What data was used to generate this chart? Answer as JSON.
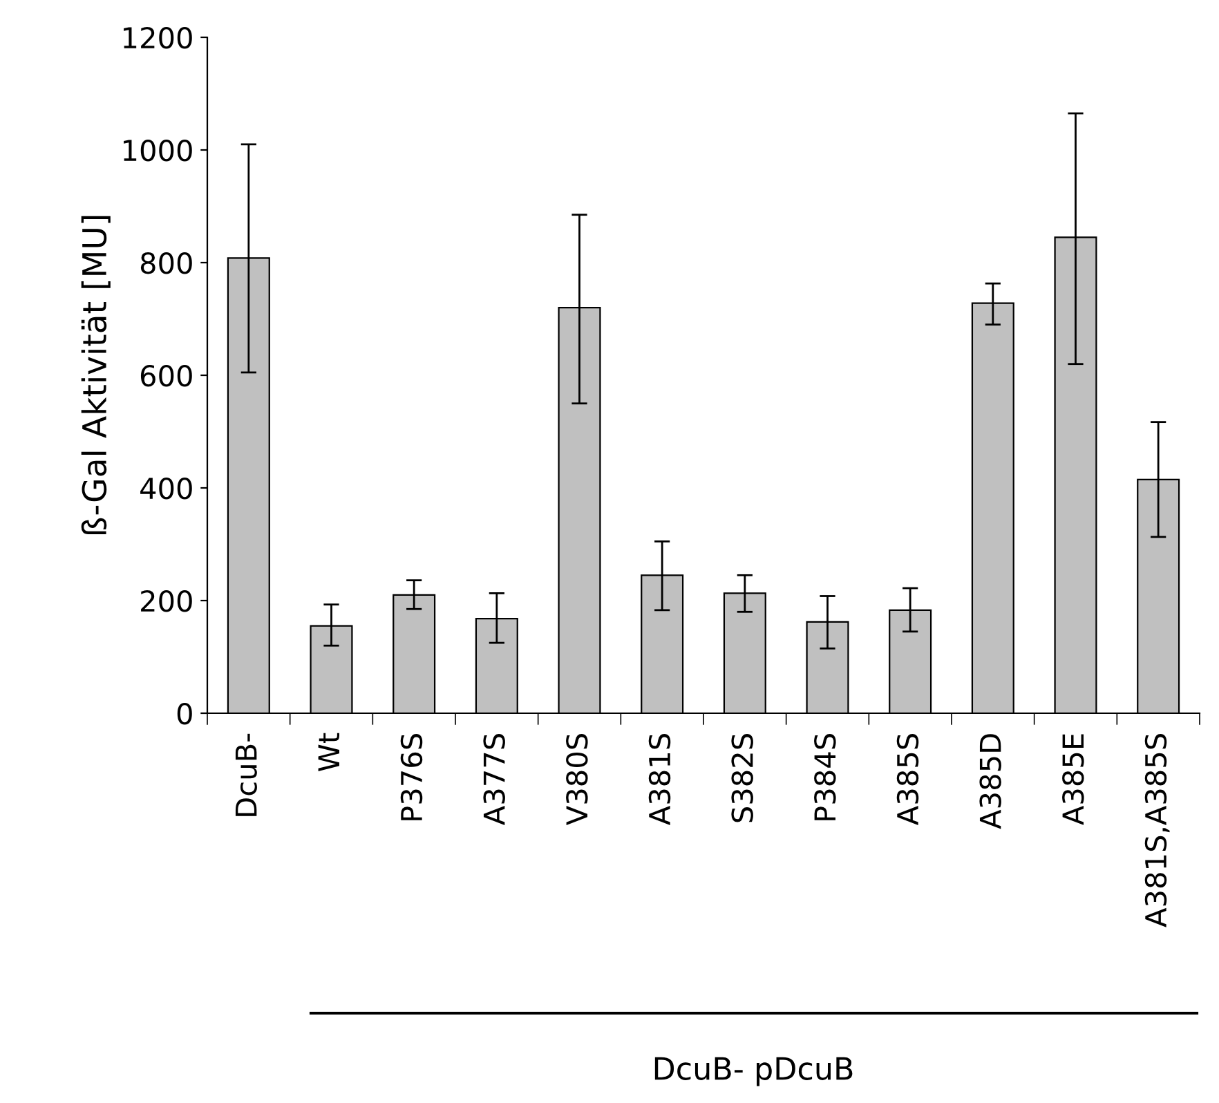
{
  "chart_data": {
    "type": "bar",
    "ylabel": "ß-Gal Aktivität [MU]",
    "categories": [
      "DcuB-",
      "Wt",
      "P376S",
      "A377S",
      "V380S",
      "A381S",
      "S382S",
      "P384S",
      "A385S",
      "A385D",
      "A385E",
      "A381S,A385S"
    ],
    "values": [
      808,
      155,
      210,
      168,
      720,
      245,
      213,
      162,
      183,
      728,
      845,
      415
    ],
    "errors": [
      [
        605,
        1010
      ],
      [
        120,
        193
      ],
      [
        185,
        236
      ],
      [
        125,
        213
      ],
      [
        550,
        885
      ],
      [
        183,
        305
      ],
      [
        180,
        245
      ],
      [
        115,
        208
      ],
      [
        145,
        222
      ],
      [
        690,
        763
      ],
      [
        620,
        1065
      ],
      [
        313,
        517
      ]
    ],
    "color": "#c0c0c0",
    "ylim": [
      0,
      1200
    ],
    "yticks": [
      0,
      200,
      400,
      600,
      800,
      1000,
      1200
    ],
    "grid": false,
    "annotations": [
      "DcuB- pDcuB"
    ]
  }
}
